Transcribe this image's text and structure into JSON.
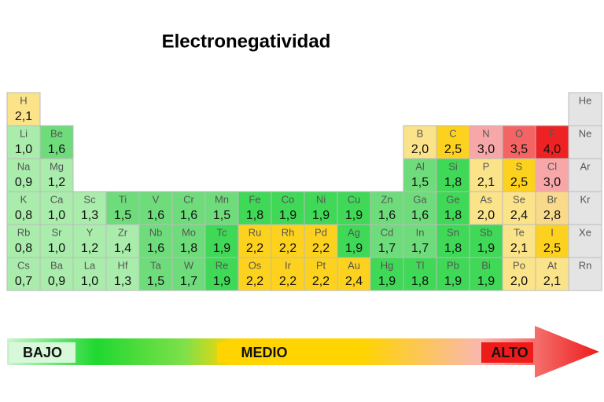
{
  "title": "Electronegatividad",
  "table": {
    "rows": [
      [
        {
          "symbol": "H",
          "value": "2,1",
          "color": "#fbe38a"
        },
        null,
        null,
        null,
        null,
        null,
        null,
        null,
        null,
        null,
        null,
        null,
        null,
        null,
        null,
        null,
        null,
        {
          "symbol": "He",
          "color": "#e4e4e4"
        }
      ],
      [
        {
          "symbol": "Li",
          "value": "1,0",
          "color": "#a9ecab"
        },
        {
          "symbol": "Be",
          "value": "1,6",
          "color": "#6fdc7c"
        },
        null,
        null,
        null,
        null,
        null,
        null,
        null,
        null,
        null,
        null,
        {
          "symbol": "B",
          "value": "2,0",
          "color": "#fbe38a"
        },
        {
          "symbol": "C",
          "value": "2,5",
          "color": "#fdd21e"
        },
        {
          "symbol": "N",
          "value": "3,0",
          "color": "#f7a7a7"
        },
        {
          "symbol": "O",
          "value": "3,5",
          "color": "#f46464"
        },
        {
          "symbol": "F",
          "value": "4,0",
          "color": "#ee2222"
        },
        {
          "symbol": "Ne",
          "color": "#e4e4e4"
        }
      ],
      [
        {
          "symbol": "Na",
          "value": "0,9",
          "color": "#a9ecab"
        },
        {
          "symbol": "Mg",
          "value": "1,2",
          "color": "#a9ecab"
        },
        null,
        null,
        null,
        null,
        null,
        null,
        null,
        null,
        null,
        null,
        {
          "symbol": "Al",
          "value": "1,5",
          "color": "#6fdc7c"
        },
        {
          "symbol": "Si",
          "value": "1,8",
          "color": "#3fd857"
        },
        {
          "symbol": "P",
          "value": "2,1",
          "color": "#fbe38a"
        },
        {
          "symbol": "S",
          "value": "2,5",
          "color": "#fdd21e"
        },
        {
          "symbol": "Cl",
          "value": "3,0",
          "color": "#f7a7a7"
        },
        {
          "symbol": "Ar",
          "color": "#e4e4e4"
        }
      ],
      [
        {
          "symbol": "K",
          "value": "0,8",
          "color": "#a9ecab"
        },
        {
          "symbol": "Ca",
          "value": "1,0",
          "color": "#a9ecab"
        },
        {
          "symbol": "Sc",
          "value": "1,3",
          "color": "#a9ecab"
        },
        {
          "symbol": "Ti",
          "value": "1,5",
          "color": "#6fdc7c"
        },
        {
          "symbol": "V",
          "value": "1,6",
          "color": "#6fdc7c"
        },
        {
          "symbol": "Cr",
          "value": "1,6",
          "color": "#6fdc7c"
        },
        {
          "symbol": "Mn",
          "value": "1,5",
          "color": "#6fdc7c"
        },
        {
          "symbol": "Fe",
          "value": "1,8",
          "color": "#3fd857"
        },
        {
          "symbol": "Co",
          "value": "1,9",
          "color": "#3fd857"
        },
        {
          "symbol": "Ni",
          "value": "1,9",
          "color": "#3fd857"
        },
        {
          "symbol": "Cu",
          "value": "1,9",
          "color": "#3fd857"
        },
        {
          "symbol": "Zn",
          "value": "1,6",
          "color": "#6fdc7c"
        },
        {
          "symbol": "Ga",
          "value": "1,6",
          "color": "#6fdc7c"
        },
        {
          "symbol": "Ge",
          "value": "1,8",
          "color": "#3fd857"
        },
        {
          "symbol": "As",
          "value": "2,0",
          "color": "#fbe38a"
        },
        {
          "symbol": "Se",
          "value": "2,4",
          "color": "#fbe38a"
        },
        {
          "symbol": "Br",
          "value": "2,8",
          "color": "#f9d98a"
        },
        {
          "symbol": "Kr",
          "color": "#e4e4e4"
        }
      ],
      [
        {
          "symbol": "Rb",
          "value": "0,8",
          "color": "#a9ecab"
        },
        {
          "symbol": "Sr",
          "value": "1,0",
          "color": "#a9ecab"
        },
        {
          "symbol": "Y",
          "value": "1,2",
          "color": "#a9ecab"
        },
        {
          "symbol": "Zr",
          "value": "1,4",
          "color": "#a9ecab"
        },
        {
          "symbol": "Nb",
          "value": "1,6",
          "color": "#6fdc7c"
        },
        {
          "symbol": "Mo",
          "value": "1,8",
          "color": "#6fdc7c"
        },
        {
          "symbol": "Tc",
          "value": "1,9",
          "color": "#3fd857"
        },
        {
          "symbol": "Ru",
          "value": "2,2",
          "color": "#fdd21e"
        },
        {
          "symbol": "Rh",
          "value": "2,2",
          "color": "#fdd21e"
        },
        {
          "symbol": "Pd",
          "value": "2,2",
          "color": "#fdd21e"
        },
        {
          "symbol": "Ag",
          "value": "1,9",
          "color": "#3fd857"
        },
        {
          "symbol": "Cd",
          "value": "1,7",
          "color": "#6fdc7c"
        },
        {
          "symbol": "In",
          "value": "1,7",
          "color": "#6fdc7c"
        },
        {
          "symbol": "Sn",
          "value": "1,8",
          "color": "#3fd857"
        },
        {
          "symbol": "Sb",
          "value": "1,9",
          "color": "#3fd857"
        },
        {
          "symbol": "Te",
          "value": "2,1",
          "color": "#fbe38a"
        },
        {
          "symbol": "I",
          "value": "2,5",
          "color": "#fdd21e"
        },
        {
          "symbol": "Xe",
          "color": "#e4e4e4"
        }
      ],
      [
        {
          "symbol": "Cs",
          "value": "0,7",
          "color": "#a9ecab"
        },
        {
          "symbol": "Ba",
          "value": "0,9",
          "color": "#a9ecab"
        },
        {
          "symbol": "La",
          "value": "1,0",
          "color": "#a9ecab"
        },
        {
          "symbol": "Hf",
          "value": "1,3",
          "color": "#a9ecab"
        },
        {
          "symbol": "Ta",
          "value": "1,5",
          "color": "#6fdc7c"
        },
        {
          "symbol": "W",
          "value": "1,7",
          "color": "#6fdc7c"
        },
        {
          "symbol": "Re",
          "value": "1,9",
          "color": "#3fd857"
        },
        {
          "symbol": "Os",
          "value": "2,2",
          "color": "#fdd21e"
        },
        {
          "symbol": "Ir",
          "value": "2,2",
          "color": "#fdd21e"
        },
        {
          "symbol": "Pt",
          "value": "2,2",
          "color": "#fdd21e"
        },
        {
          "symbol": "Au",
          "value": "2,4",
          "color": "#fdd21e"
        },
        {
          "symbol": "Hg",
          "value": "1,9",
          "color": "#3fd857"
        },
        {
          "symbol": "Tl",
          "value": "1,8",
          "color": "#3fd857"
        },
        {
          "symbol": "Pb",
          "value": "1,9",
          "color": "#3fd857"
        },
        {
          "symbol": "Bi",
          "value": "1,9",
          "color": "#3fd857"
        },
        {
          "symbol": "Po",
          "value": "2,0",
          "color": "#fbe38a"
        },
        {
          "symbol": "At",
          "value": "2,1",
          "color": "#fbe38a"
        },
        {
          "symbol": "Rn",
          "color": "#e4e4e4"
        }
      ]
    ]
  },
  "scale": {
    "low": "BAJO",
    "mid": "MEDIO",
    "high": "ALTO"
  }
}
